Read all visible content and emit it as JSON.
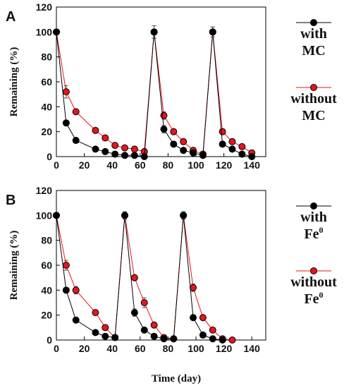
{
  "figure": {
    "x_axis_title": "Time (day)"
  },
  "chart_data": [
    {
      "type": "line",
      "panel": "A",
      "ylabel": "Remaining (%)",
      "xlim": [
        0,
        150
      ],
      "ylim": [
        0,
        120
      ],
      "x_ticks": [
        0,
        20,
        40,
        60,
        80,
        100,
        120,
        140
      ],
      "y_ticks": [
        0,
        20,
        40,
        60,
        80,
        100,
        120
      ],
      "legend_position": "right",
      "series": [
        {
          "name_lines": [
            "with",
            "MC"
          ],
          "color": "#000000",
          "points": [
            {
              "x": 0,
              "y": 100,
              "err": 0
            },
            {
              "x": 7,
              "y": 27,
              "err": 2
            },
            {
              "x": 14,
              "y": 13,
              "err": 1.5
            },
            {
              "x": 28,
              "y": 6,
              "err": 1
            },
            {
              "x": 35,
              "y": 4,
              "err": 1
            },
            {
              "x": 42,
              "y": 2,
              "err": 0.8
            },
            {
              "x": 49,
              "y": 1,
              "err": 0.5
            },
            {
              "x": 56,
              "y": 1,
              "err": 0.5
            },
            {
              "x": 63,
              "y": 0,
              "err": 0
            },
            {
              "x": 70,
              "y": 100,
              "err": 5
            },
            {
              "x": 77,
              "y": 22,
              "err": 3
            },
            {
              "x": 84,
              "y": 10,
              "err": 1.5
            },
            {
              "x": 91,
              "y": 5,
              "err": 1
            },
            {
              "x": 98,
              "y": 3,
              "err": 0.8
            },
            {
              "x": 105,
              "y": 1,
              "err": 0.5
            },
            {
              "x": 112,
              "y": 100,
              "err": 4
            },
            {
              "x": 119,
              "y": 10,
              "err": 2
            },
            {
              "x": 126,
              "y": 6,
              "err": 1
            },
            {
              "x": 133,
              "y": 2,
              "err": 0.5
            },
            {
              "x": 140,
              "y": 0,
              "err": 0
            }
          ]
        },
        {
          "name_lines": [
            "without",
            "MC"
          ],
          "color": "#e8141e",
          "points": [
            {
              "x": 0,
              "y": 100,
              "err": 0
            },
            {
              "x": 7,
              "y": 52,
              "err": 5
            },
            {
              "x": 14,
              "y": 36,
              "err": 1
            },
            {
              "x": 28,
              "y": 21,
              "err": 1.5
            },
            {
              "x": 35,
              "y": 15,
              "err": 1
            },
            {
              "x": 42,
              "y": 9,
              "err": 1
            },
            {
              "x": 49,
              "y": 7,
              "err": 1
            },
            {
              "x": 56,
              "y": 6,
              "err": 1
            },
            {
              "x": 63,
              "y": 4,
              "err": 0.8
            },
            {
              "x": 70,
              "y": 100,
              "err": 5
            },
            {
              "x": 77,
              "y": 33,
              "err": 3
            },
            {
              "x": 84,
              "y": 20,
              "err": 1.5
            },
            {
              "x": 91,
              "y": 12,
              "err": 1
            },
            {
              "x": 98,
              "y": 5,
              "err": 1
            },
            {
              "x": 105,
              "y": 2,
              "err": 0.5
            },
            {
              "x": 112,
              "y": 100,
              "err": 4
            },
            {
              "x": 119,
              "y": 20,
              "err": 2
            },
            {
              "x": 126,
              "y": 12,
              "err": 1
            },
            {
              "x": 133,
              "y": 8,
              "err": 1
            },
            {
              "x": 140,
              "y": 3,
              "err": 0.5
            }
          ]
        }
      ]
    },
    {
      "type": "line",
      "panel": "B",
      "ylabel": "Remaining (%)",
      "xlim": [
        0,
        150
      ],
      "ylim": [
        0,
        120
      ],
      "x_ticks": [
        0,
        20,
        40,
        60,
        80,
        100,
        120,
        140
      ],
      "y_ticks": [
        0,
        20,
        40,
        60,
        80,
        100,
        120
      ],
      "legend_position": "right",
      "series": [
        {
          "name_lines": [
            "with",
            "Fe",
            "0"
          ],
          "color": "#000000",
          "points": [
            {
              "x": 0,
              "y": 100,
              "err": 0
            },
            {
              "x": 7,
              "y": 40,
              "err": 2
            },
            {
              "x": 14,
              "y": 16,
              "err": 2
            },
            {
              "x": 28,
              "y": 6,
              "err": 1
            },
            {
              "x": 35,
              "y": 3,
              "err": 1
            },
            {
              "x": 42,
              "y": 2,
              "err": 0.5
            },
            {
              "x": 49,
              "y": 100,
              "err": 3
            },
            {
              "x": 56,
              "y": 22,
              "err": 3
            },
            {
              "x": 63,
              "y": 8,
              "err": 2
            },
            {
              "x": 70,
              "y": 3,
              "err": 0.5
            },
            {
              "x": 77,
              "y": 1,
              "err": 0.3
            },
            {
              "x": 84,
              "y": 1,
              "err": 0.3
            },
            {
              "x": 91,
              "y": 100,
              "err": 3
            },
            {
              "x": 98,
              "y": 18,
              "err": 2
            },
            {
              "x": 105,
              "y": 4,
              "err": 1
            },
            {
              "x": 112,
              "y": 1,
              "err": 0.3
            },
            {
              "x": 119,
              "y": 0,
              "err": 0
            }
          ]
        },
        {
          "name_lines": [
            "without",
            "Fe",
            "0"
          ],
          "color": "#e8141e",
          "points": [
            {
              "x": 0,
              "y": 100,
              "err": 0
            },
            {
              "x": 7,
              "y": 60,
              "err": 4
            },
            {
              "x": 14,
              "y": 40,
              "err": 3
            },
            {
              "x": 28,
              "y": 22,
              "err": 2
            },
            {
              "x": 35,
              "y": 10,
              "err": 1
            },
            {
              "x": 42,
              "y": 2,
              "err": 0.5
            },
            {
              "x": 49,
              "y": 100,
              "err": 3
            },
            {
              "x": 56,
              "y": 50,
              "err": 2
            },
            {
              "x": 63,
              "y": 30,
              "err": 4
            },
            {
              "x": 70,
              "y": 12,
              "err": 1
            },
            {
              "x": 77,
              "y": 2,
              "err": 0.5
            },
            {
              "x": 84,
              "y": 1,
              "err": 0.3
            },
            {
              "x": 91,
              "y": 100,
              "err": 3
            },
            {
              "x": 98,
              "y": 42,
              "err": 3
            },
            {
              "x": 105,
              "y": 18,
              "err": 2
            },
            {
              "x": 112,
              "y": 8,
              "err": 1
            },
            {
              "x": 119,
              "y": 1,
              "err": 0.3
            },
            {
              "x": 126,
              "y": 0,
              "err": 0
            }
          ]
        }
      ]
    }
  ]
}
